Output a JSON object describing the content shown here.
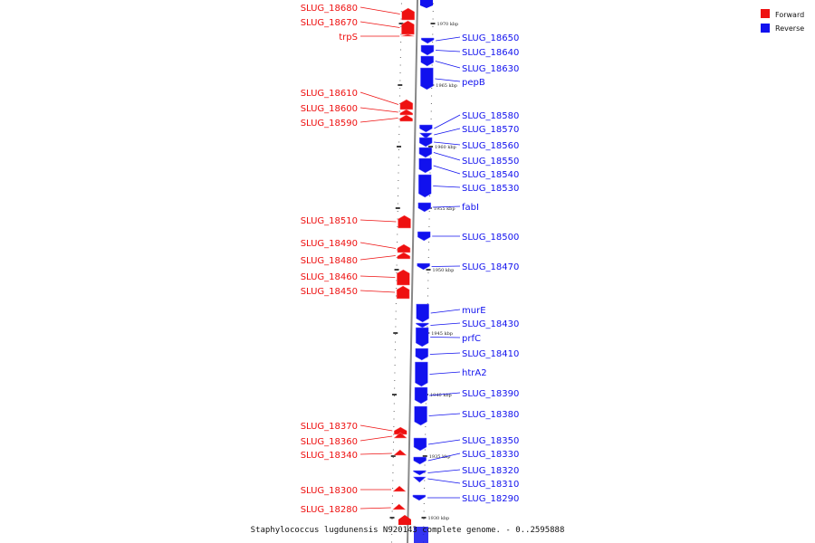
{
  "legend": {
    "forward": {
      "label": "Forward",
      "color": "#ee1111"
    },
    "reverse": {
      "label": "Reverse",
      "color": "#1111ee"
    }
  },
  "caption": "Staphylococcus lugdunensis N920143 complete genome. - 0..2595888",
  "ticks": [
    "1970 kbp",
    "1965 kbp",
    "1960 kbp",
    "1955 kbp",
    "1950 kbp",
    "1945 kbp",
    "1940 kbp",
    "1935 kbp",
    "1930 kbp"
  ],
  "genes_forward": [
    "SLUG_18680",
    "SLUG_18670",
    "trpS",
    "SLUG_18610",
    "SLUG_18600",
    "SLUG_18590",
    "SLUG_18510",
    "SLUG_18490",
    "SLUG_18480",
    "SLUG_18460",
    "SLUG_18450",
    "SLUG_18370",
    "SLUG_18360",
    "SLUG_18340",
    "SLUG_18300",
    "SLUG_18280"
  ],
  "genes_reverse": [
    "SLUG_18650",
    "SLUG_18640",
    "SLUG_18630",
    "pepB",
    "SLUG_18580",
    "SLUG_18570",
    "SLUG_18560",
    "SLUG_18550",
    "SLUG_18540",
    "SLUG_18530",
    "fabI",
    "SLUG_18500",
    "SLUG_18470",
    "murE",
    "SLUG_18430",
    "prfC",
    "SLUG_18410",
    "htrA2",
    "SLUG_18390",
    "SLUG_18380",
    "SLUG_18350",
    "SLUG_18330",
    "SLUG_18320",
    "SLUG_18310",
    "SLUG_18290"
  ]
}
